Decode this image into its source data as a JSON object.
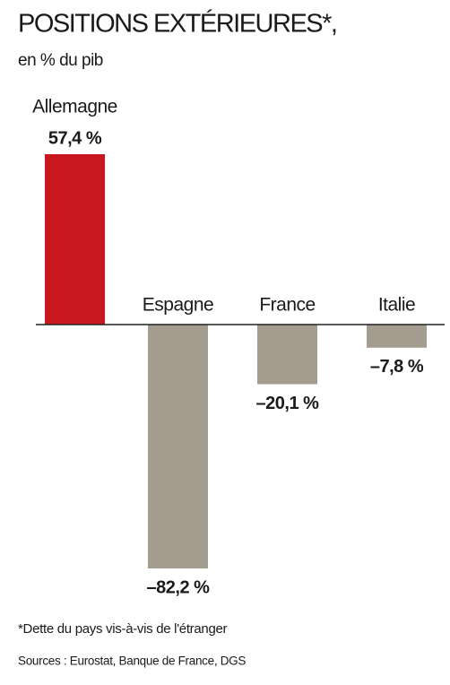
{
  "chart_data": {
    "type": "bar",
    "title": "POSITIONS EXTÉRIEURES*,",
    "subtitle": "en % du pib",
    "categories": [
      "Allemagne",
      "Espagne",
      "France",
      "Italie"
    ],
    "values": [
      57.4,
      -82.2,
      -20.1,
      -7.8
    ],
    "value_labels": [
      "57,4 %",
      "–82,2 %",
      "–20,1 %",
      "–7,8 %"
    ],
    "colors": [
      "#c8171e",
      "#a39c8f",
      "#a39c8f",
      "#a39c8f"
    ],
    "notes": [
      "*Dette du pays vis-à-vis de l'étranger",
      "Sources : Eurostat, Banque de France, DGS"
    ]
  }
}
